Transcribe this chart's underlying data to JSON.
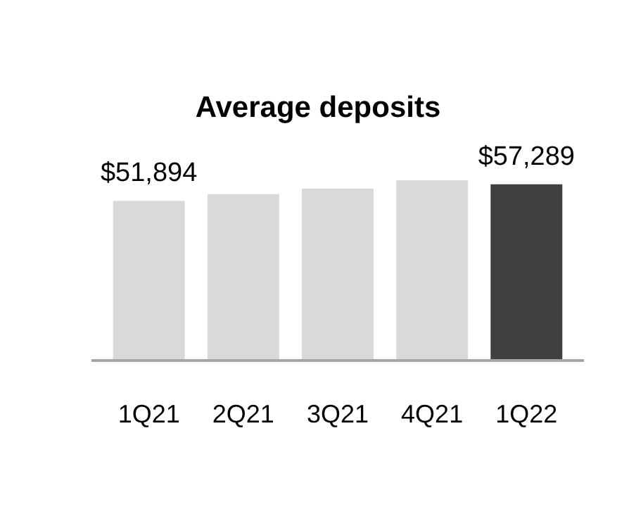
{
  "chart_data": {
    "type": "bar",
    "title": "Average deposits",
    "categories": [
      "1Q21",
      "2Q21",
      "3Q21",
      "4Q21",
      "1Q22"
    ],
    "values": [
      51894,
      54100,
      55900,
      58600,
      57289
    ],
    "colors": [
      "#d9d9d9",
      "#d9d9d9",
      "#d9d9d9",
      "#d9d9d9",
      "#404040"
    ],
    "value_labels": [
      "$51,894",
      null,
      null,
      null,
      "$57,289"
    ]
  }
}
